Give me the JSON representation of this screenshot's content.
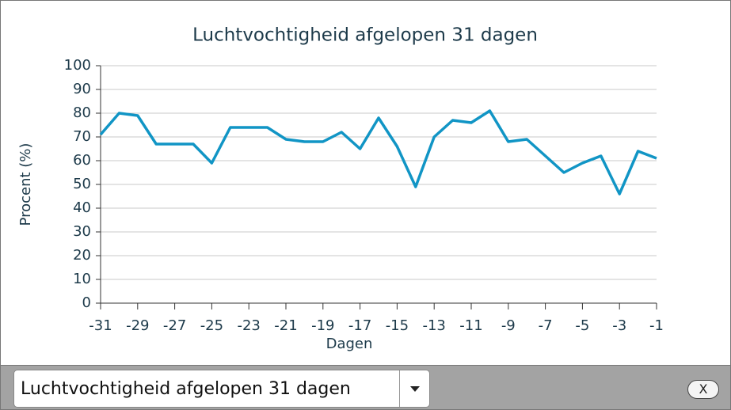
{
  "chart_data": {
    "type": "line",
    "title": "Luchtvochtigheid afgelopen 31 dagen",
    "x_label": "Dagen",
    "y_label": "Procent (%)",
    "x": [
      -31,
      -30,
      -29,
      -28,
      -27,
      -26,
      -25,
      -24,
      -23,
      -22,
      -21,
      -20,
      -19,
      -18,
      -17,
      -16,
      -15,
      -14,
      -13,
      -12,
      -11,
      -10,
      -9,
      -8,
      -7,
      -6,
      -5,
      -4,
      -3,
      -2,
      -1
    ],
    "series": [
      {
        "name": "Luchtvochtigheid",
        "color": "#1195c5",
        "values": [
          71,
          80,
          79,
          67,
          67,
          67,
          59,
          74,
          74,
          74,
          69,
          68,
          68,
          72,
          65,
          78,
          66,
          49,
          70,
          77,
          76,
          81,
          68,
          69,
          62,
          55,
          59,
          62,
          46,
          64,
          61
        ]
      }
    ],
    "xlim": [
      -31,
      -1
    ],
    "xticks": [
      -31,
      -29,
      -27,
      -25,
      -23,
      -21,
      -19,
      -17,
      -15,
      -13,
      -11,
      -9,
      -7,
      -5,
      -3,
      -1
    ],
    "ylim": [
      0,
      100
    ],
    "yticks": [
      0,
      10,
      20,
      30,
      40,
      50,
      60,
      70,
      80,
      90,
      100
    ],
    "grid": true
  },
  "controls": {
    "dropdown": "Luchtvochtigheid afgelopen 31 dagen",
    "close": "X"
  }
}
